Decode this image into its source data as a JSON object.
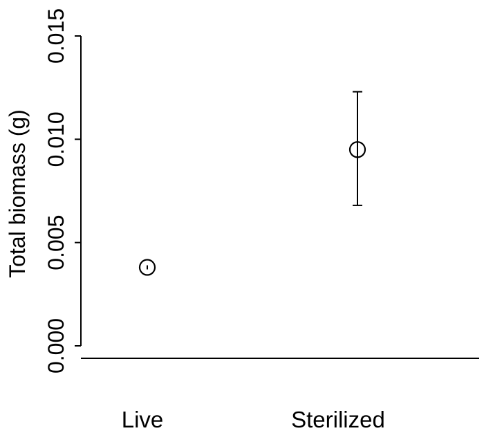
{
  "chart_data": {
    "type": "scatter",
    "title": "",
    "xlabel": "",
    "ylabel": "Total biomass (g)",
    "categories": [
      "Live",
      "Sterilized"
    ],
    "ylim": [
      0.0,
      0.015
    ],
    "yticks": [
      0.0,
      0.005,
      0.01,
      0.015
    ],
    "ytick_labels": [
      "0.000",
      "0.005",
      "0.010",
      "0.015"
    ],
    "grid": false,
    "legend": "none",
    "series": [
      {
        "points": [
          {
            "category": "Live",
            "y": 0.0038,
            "err_low": 0.0037,
            "err_high": 0.0039
          },
          {
            "category": "Sterilized",
            "y": 0.0095,
            "err_low": 0.0068,
            "err_high": 0.0123
          }
        ]
      }
    ],
    "marker": "open-circle",
    "color": "#000000"
  }
}
